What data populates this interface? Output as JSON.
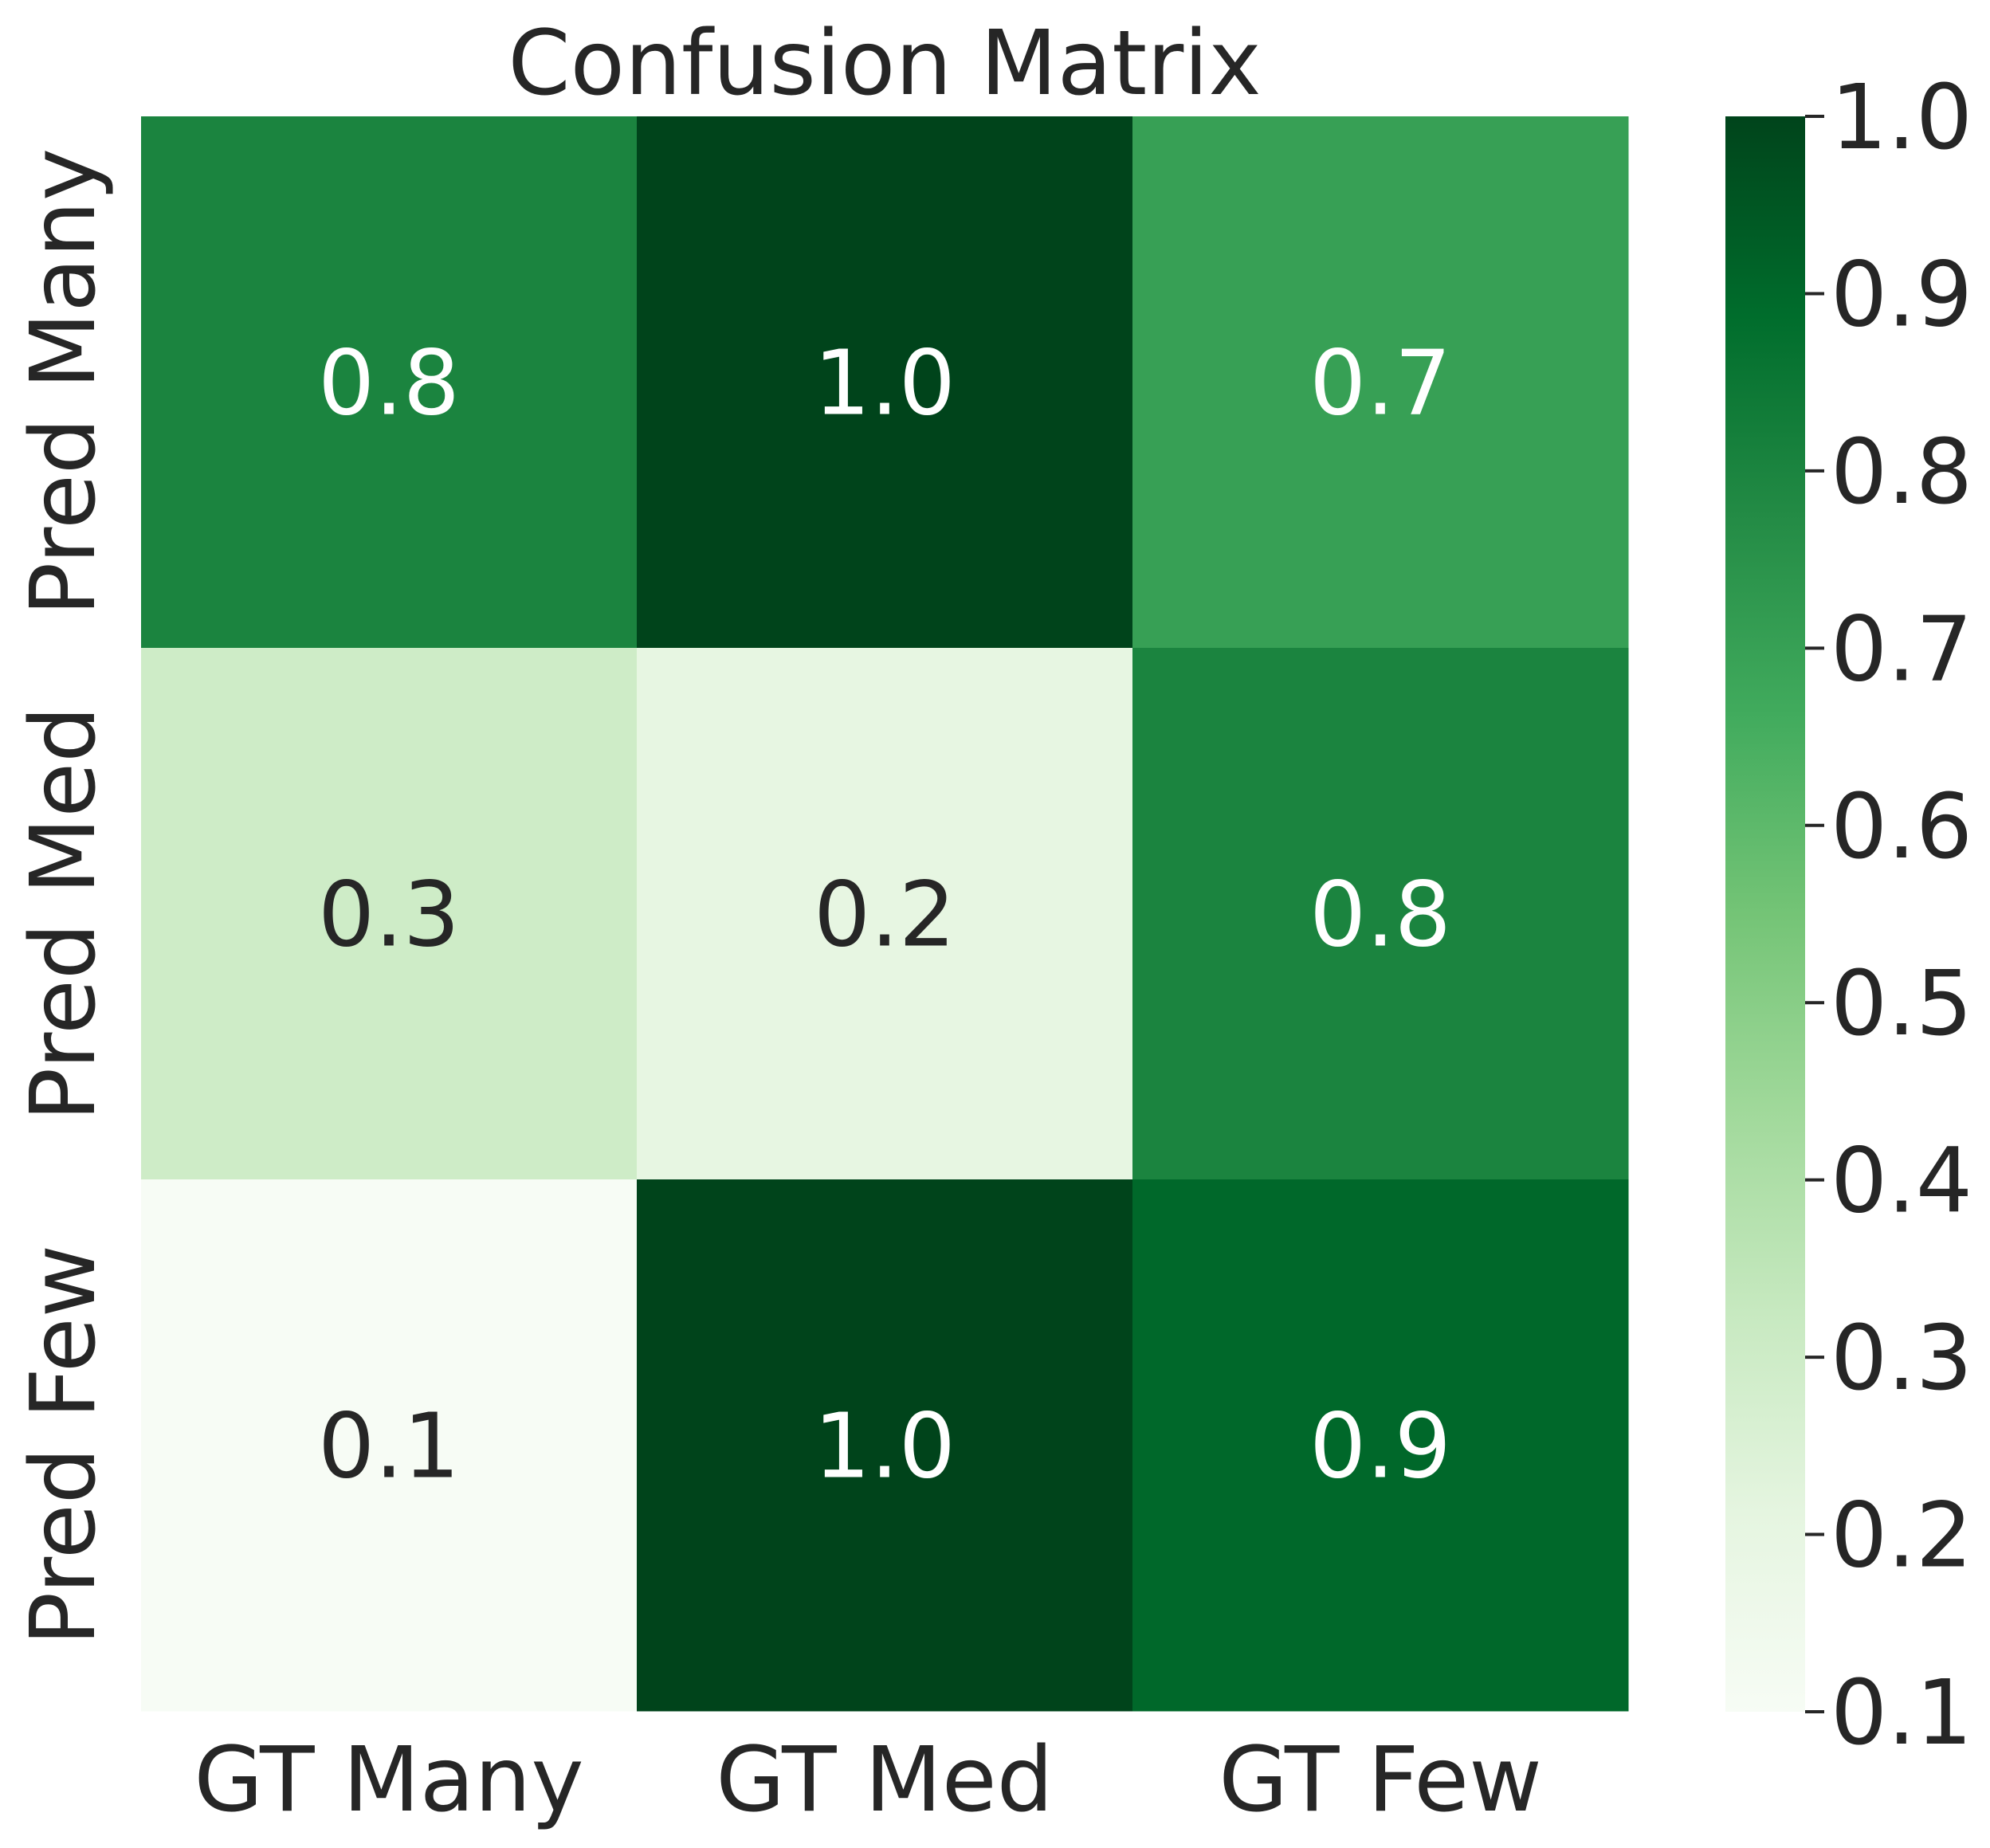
{
  "chart_data": {
    "type": "heatmap",
    "title": "Confusion Matrix",
    "x_labels": [
      "GT Many",
      "GT Med",
      "GT Few"
    ],
    "y_labels": [
      "Pred Many",
      "Pred Med",
      "Pred Few"
    ],
    "values": [
      [
        0.8,
        1.0,
        0.7
      ],
      [
        0.3,
        0.2,
        0.8
      ],
      [
        0.1,
        1.0,
        0.9
      ]
    ],
    "cell_labels": [
      [
        "0.8",
        "1.0",
        "0.7"
      ],
      [
        "0.3",
        "0.2",
        "0.8"
      ],
      [
        "0.1",
        "1.0",
        "0.9"
      ]
    ],
    "colorbar": {
      "range": [
        0.1,
        1.0
      ],
      "ticks": [
        0.1,
        0.2,
        0.3,
        0.4,
        0.5,
        0.6,
        0.7,
        0.8,
        0.9,
        1.0
      ],
      "tick_labels": [
        "0.1",
        "0.2",
        "0.3",
        "0.4",
        "0.5",
        "0.6",
        "0.7",
        "0.8",
        "0.9",
        "1.0"
      ]
    },
    "colormap": "Greens",
    "colors": [
      "#f7fcf5",
      "#e5f5e0",
      "#c7e9c0",
      "#a1d99b",
      "#74c476",
      "#41ab5d",
      "#238b45",
      "#006d2c",
      "#00441b"
    ],
    "annotation_colors": {
      "dark_text": "#262626",
      "light_text": "#ffffff"
    }
  }
}
